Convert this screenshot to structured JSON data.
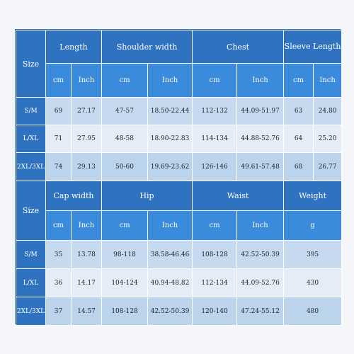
{
  "table1": {
    "size_label": "Size",
    "groups": [
      "Length",
      "Shoulder width",
      "Chest",
      "Sleeve Length"
    ],
    "units": [
      "cm",
      "Inch",
      "cm",
      "Inch",
      "cm",
      "Inch",
      "cm",
      "Inch"
    ],
    "rows": [
      {
        "size": "S/M",
        "values": [
          "69",
          "27.17",
          "47-57",
          "18.50-22.44",
          "112-132",
          "44.09-51.97",
          "63",
          "24.80"
        ]
      },
      {
        "size": "L/XL",
        "values": [
          "71",
          "27.95",
          "48-58",
          "18.90-22.83",
          "114-134",
          "44.88-52.76",
          "64",
          "25.20"
        ]
      },
      {
        "size": "2XL/3XL",
        "values": [
          "74",
          "29.13",
          "50-60",
          "19.69-23.62",
          "126-146",
          "49.61-57.48",
          "68",
          "26.77"
        ]
      }
    ]
  },
  "table2": {
    "size_label": "Size",
    "groups": [
      "Cap width",
      "Hip",
      "Waist",
      "Weight"
    ],
    "units": [
      "cm",
      "Inch",
      "cm",
      "Inch",
      "cm",
      "Inch",
      "g"
    ],
    "rows": [
      {
        "size": "S/M",
        "values": [
          "35",
          "13.78",
          "98-118",
          "38.58-46.46",
          "108-128",
          "42.52-50.39",
          "395"
        ]
      },
      {
        "size": "L/XL",
        "values": [
          "36",
          "14.17",
          "104-124",
          "40.94-48.82",
          "112-134",
          "44.09-52.76",
          "430"
        ]
      },
      {
        "size": "2XL/3XL",
        "values": [
          "37",
          "14.57",
          "108-128",
          "42.52-50.39",
          "120-140",
          "47.24-55.12",
          "480"
        ]
      }
    ]
  }
}
